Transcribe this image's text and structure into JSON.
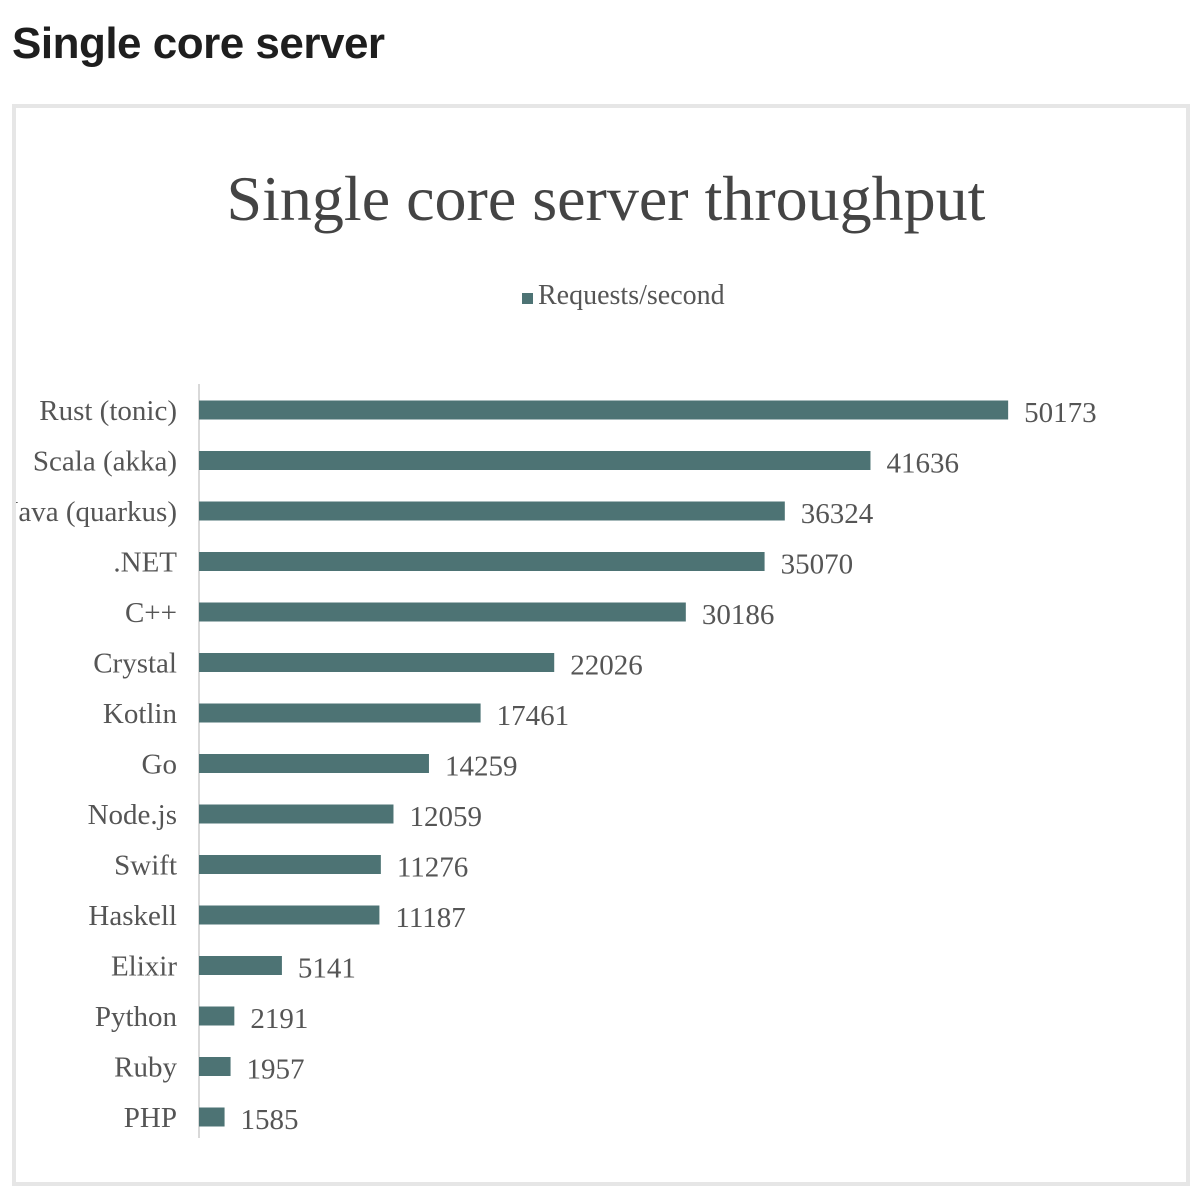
{
  "page": {
    "heading": "Single core server"
  },
  "colors": {
    "bar": "#4d7374",
    "axis": "#d9d9d9",
    "card_border": "#e6e6e6"
  },
  "chart_data": {
    "type": "bar",
    "orientation": "horizontal",
    "title": "Single core server throughput",
    "xlabel": "",
    "ylabel": "",
    "legend": {
      "entries": [
        "Requests/second"
      ],
      "placement": "top"
    },
    "grid": false,
    "xlim": [
      0,
      55000
    ],
    "categories": [
      "Rust (tonic)",
      "Scala (akka)",
      "Java (quarkus)",
      ".NET",
      "C++",
      "Crystal",
      "Kotlin",
      "Go",
      "Node.js",
      "Swift",
      "Haskell",
      "Elixir",
      "Python",
      "Ruby",
      "PHP"
    ],
    "series": [
      {
        "name": "Requests/second",
        "values": [
          50173,
          41636,
          36324,
          35070,
          30186,
          22026,
          17461,
          14259,
          12059,
          11276,
          11187,
          5141,
          2191,
          1957,
          1585
        ]
      }
    ]
  }
}
